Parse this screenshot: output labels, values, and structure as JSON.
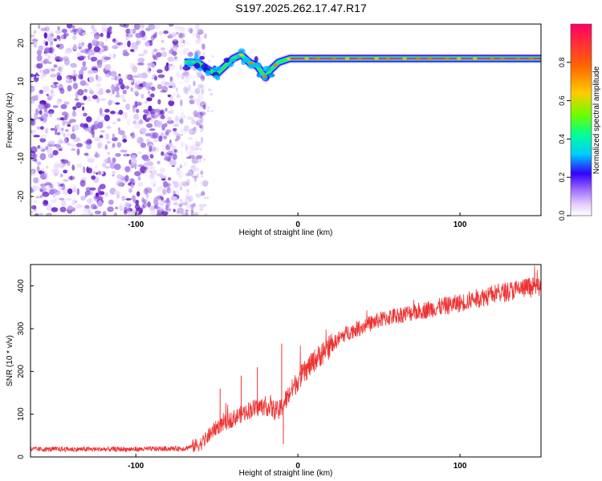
{
  "title": "S197.2025.262.17.47.R17",
  "chart_data": [
    {
      "type": "heatmap",
      "xlabel": "Height of straight line (km)",
      "ylabel": "Frequency (Hz)",
      "xlim": [
        -165,
        150
      ],
      "ylim": [
        -25,
        25
      ],
      "x_ticks": [
        "-100",
        "0",
        "100"
      ],
      "x_tick_values": [
        -100,
        0,
        100
      ],
      "y_ticks": [
        "20",
        "10",
        "0",
        "-10",
        "-20"
      ],
      "y_tick_values": [
        20,
        10,
        0,
        -10,
        -20
      ],
      "grid": false,
      "colorbar": {
        "label": "Normalized spectral amplitude",
        "ticks": [
          "0.0",
          "0.2",
          "0.4",
          "0.6",
          "0.8"
        ],
        "tick_values": [
          0.0,
          0.2,
          0.4,
          0.6,
          0.8
        ],
        "range": [
          0,
          1
        ],
        "colors": [
          "#ffffff",
          "#e6ccff",
          "#9966ff",
          "#3300ff",
          "#00ccff",
          "#00ff99",
          "#66ff00",
          "#ffcc00",
          "#ff6600",
          "#ff0066"
        ]
      },
      "noise_region_x": [
        -165,
        -65
      ],
      "ridge": [
        {
          "x": -70,
          "y": 15
        },
        {
          "x": -62,
          "y": 15
        },
        {
          "x": -55,
          "y": 13
        },
        {
          "x": -50,
          "y": 12
        },
        {
          "x": -45,
          "y": 14
        },
        {
          "x": -40,
          "y": 16
        },
        {
          "x": -35,
          "y": 17
        },
        {
          "x": -30,
          "y": 15
        },
        {
          "x": -25,
          "y": 14
        },
        {
          "x": -20,
          "y": 11
        },
        {
          "x": -17,
          "y": 13
        },
        {
          "x": -12,
          "y": 15
        },
        {
          "x": -5,
          "y": 16
        },
        {
          "x": 0,
          "y": 16
        },
        {
          "x": 50,
          "y": 16
        },
        {
          "x": 100,
          "y": 16
        },
        {
          "x": 150,
          "y": 16
        }
      ]
    },
    {
      "type": "line",
      "xlabel": "Height of straight line (km)",
      "ylabel": "SNR (10 * v/v)",
      "xlim": [
        -165,
        150
      ],
      "ylim": [
        0,
        450
      ],
      "x_ticks": [
        "-100",
        "0",
        "100"
      ],
      "x_tick_values": [
        -100,
        0,
        100
      ],
      "y_ticks": [
        "0",
        "100",
        "200",
        "300",
        "400"
      ],
      "y_tick_values": [
        0,
        100,
        200,
        300,
        400
      ],
      "grid": false,
      "series_color": "#ee3333",
      "trend": [
        {
          "x": -165,
          "y": 18
        },
        {
          "x": -140,
          "y": 18
        },
        {
          "x": -100,
          "y": 18
        },
        {
          "x": -70,
          "y": 20
        },
        {
          "x": -60,
          "y": 30
        },
        {
          "x": -55,
          "y": 50
        },
        {
          "x": -50,
          "y": 70
        },
        {
          "x": -40,
          "y": 90
        },
        {
          "x": -30,
          "y": 110
        },
        {
          "x": -20,
          "y": 120
        },
        {
          "x": -12,
          "y": 105
        },
        {
          "x": -8,
          "y": 130
        },
        {
          "x": 0,
          "y": 180
        },
        {
          "x": 10,
          "y": 225
        },
        {
          "x": 20,
          "y": 260
        },
        {
          "x": 30,
          "y": 290
        },
        {
          "x": 40,
          "y": 305
        },
        {
          "x": 50,
          "y": 320
        },
        {
          "x": 60,
          "y": 330
        },
        {
          "x": 80,
          "y": 345
        },
        {
          "x": 100,
          "y": 360
        },
        {
          "x": 120,
          "y": 380
        },
        {
          "x": 140,
          "y": 395
        },
        {
          "x": 150,
          "y": 400
        }
      ],
      "spikes": [
        {
          "x": -48,
          "y": 160
        },
        {
          "x": -35,
          "y": 190
        },
        {
          "x": -25,
          "y": 210
        },
        {
          "x": -10,
          "y": 265
        },
        {
          "x": -9,
          "y": 30
        }
      ]
    }
  ]
}
